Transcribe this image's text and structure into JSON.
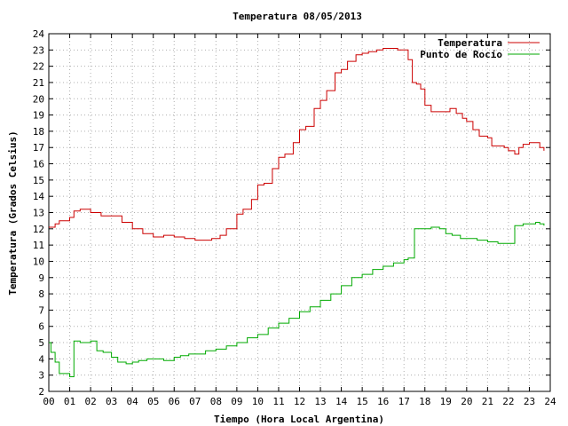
{
  "chart_data": {
    "type": "line",
    "title": "Temperatura 08/05/2013",
    "xlabel": "Tiempo (Hora Local Argentina)",
    "ylabel": "Temperatura (Grados Celsius)",
    "xlim": [
      0,
      24
    ],
    "ylim": [
      2,
      24
    ],
    "x_ticks": [
      "00",
      "01",
      "02",
      "03",
      "04",
      "05",
      "06",
      "07",
      "08",
      "09",
      "10",
      "11",
      "12",
      "13",
      "14",
      "15",
      "16",
      "17",
      "18",
      "19",
      "20",
      "21",
      "22",
      "23",
      "24"
    ],
    "y_ticks": [
      2,
      3,
      4,
      5,
      6,
      7,
      8,
      9,
      10,
      11,
      12,
      13,
      14,
      15,
      16,
      17,
      18,
      19,
      20,
      21,
      22,
      23,
      24
    ],
    "grid": true,
    "legend": "top-right",
    "colors": {
      "temperatura": "#cc0000",
      "punto_de_rocio": "#00aa00",
      "grid": "#b0b0b0"
    },
    "series": [
      {
        "name": "Temperatura",
        "color": "#cc0000",
        "x": [
          0,
          0.3,
          0.5,
          1,
          1.2,
          1.5,
          2,
          2.5,
          3,
          3.5,
          4,
          4.5,
          5,
          5.5,
          6,
          6.5,
          7,
          7.5,
          7.8,
          8.2,
          8.5,
          9,
          9.3,
          9.7,
          10,
          10.3,
          10.7,
          11,
          11.3,
          11.7,
          12,
          12.3,
          12.7,
          13,
          13.3,
          13.7,
          14,
          14.3,
          14.7,
          15,
          15.3,
          15.7,
          16,
          16.3,
          16.7,
          17,
          17.2,
          17.4,
          17.6,
          17.8,
          18,
          18.3,
          18.7,
          19,
          19.2,
          19.5,
          19.8,
          20,
          20.3,
          20.6,
          21,
          21.2,
          21.5,
          21.8,
          22,
          22.3,
          22.5,
          22.7,
          23,
          23.3,
          23.5,
          23.7
        ],
        "values": [
          12.1,
          12.3,
          12.5,
          12.7,
          13.1,
          13.2,
          13.0,
          12.8,
          12.8,
          12.4,
          12.0,
          11.7,
          11.5,
          11.6,
          11.5,
          11.4,
          11.3,
          11.3,
          11.4,
          11.6,
          12.0,
          12.9,
          13.2,
          13.8,
          14.7,
          14.8,
          15.7,
          16.4,
          16.6,
          17.3,
          18.1,
          18.3,
          19.4,
          19.9,
          20.5,
          21.6,
          21.8,
          22.3,
          22.7,
          22.8,
          22.9,
          23.0,
          23.1,
          23.1,
          23.0,
          23.0,
          22.4,
          21.0,
          20.9,
          20.6,
          19.6,
          19.2,
          19.2,
          19.2,
          19.4,
          19.1,
          18.8,
          18.6,
          18.1,
          17.7,
          17.6,
          17.1,
          17.1,
          17.0,
          16.8,
          16.6,
          17.0,
          17.2,
          17.3,
          17.3,
          17.0,
          16.8
        ]
      },
      {
        "name": "Punto de Rocío",
        "color": "#00aa00",
        "x": [
          0,
          0.1,
          0.3,
          0.5,
          1,
          1.2,
          1.5,
          2,
          2.3,
          2.6,
          3,
          3.3,
          3.7,
          4,
          4.3,
          4.7,
          5,
          5.5,
          6,
          6.3,
          6.7,
          7,
          7.5,
          8,
          8.5,
          9,
          9.5,
          10,
          10.5,
          11,
          11.5,
          12,
          12.5,
          13,
          13.5,
          14,
          14.5,
          15,
          15.5,
          16,
          16.5,
          17,
          17.2,
          17.5,
          18,
          18.3,
          18.7,
          19,
          19.3,
          19.7,
          20,
          20.5,
          21,
          21.5,
          22,
          22.3,
          22.7,
          23,
          23.3,
          23.5,
          23.7
        ],
        "values": [
          5.0,
          4.4,
          3.8,
          3.1,
          2.9,
          5.1,
          5.0,
          5.1,
          4.5,
          4.4,
          4.1,
          3.8,
          3.7,
          3.8,
          3.9,
          4.0,
          4.0,
          3.9,
          4.1,
          4.2,
          4.3,
          4.3,
          4.5,
          4.6,
          4.8,
          5.0,
          5.3,
          5.5,
          5.9,
          6.2,
          6.5,
          6.9,
          7.2,
          7.6,
          8.0,
          8.5,
          9.0,
          9.2,
          9.5,
          9.7,
          9.9,
          10.1,
          10.2,
          12.0,
          12.0,
          12.1,
          12.0,
          11.7,
          11.6,
          11.4,
          11.4,
          11.3,
          11.2,
          11.1,
          11.1,
          12.2,
          12.3,
          12.3,
          12.4,
          12.3,
          12.2
        ]
      }
    ]
  }
}
